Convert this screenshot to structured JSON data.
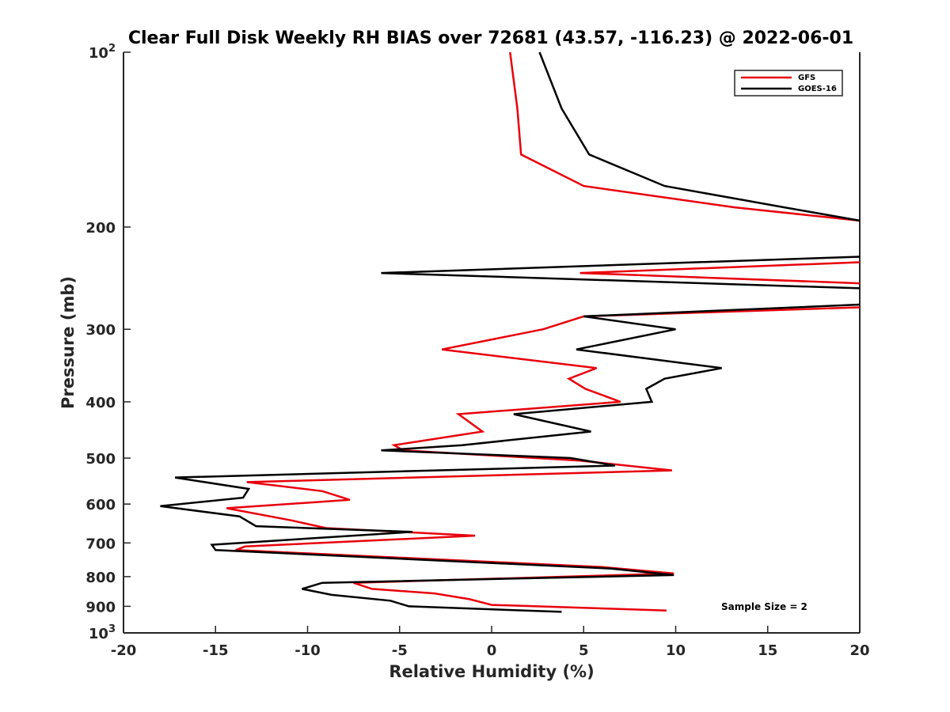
{
  "chart_data": {
    "type": "line",
    "title": "Clear Full Disk Weekly RH BIAS over 72681 (43.57, -116.23) @ 2022-06-01",
    "xlabel": "Relative Humidity (%)",
    "ylabel": "Pressure (mb)",
    "xlim": [
      -20,
      20
    ],
    "ylim": [
      100,
      1000
    ],
    "yscale": "log",
    "y_reversed": true,
    "x_ticks": [
      "-20",
      "-15",
      "-10",
      "-5",
      "0",
      "5",
      "10",
      "15",
      "20"
    ],
    "y_ticks": [
      {
        "value": 100,
        "label": "10",
        "sup": "2"
      },
      {
        "value": 200,
        "label": "200",
        "sup": ""
      },
      {
        "value": 300,
        "label": "300",
        "sup": ""
      },
      {
        "value": 400,
        "label": "400",
        "sup": ""
      },
      {
        "value": 500,
        "label": "500",
        "sup": ""
      },
      {
        "value": 600,
        "label": "600",
        "sup": ""
      },
      {
        "value": 700,
        "label": "700",
        "sup": ""
      },
      {
        "value": 800,
        "label": "800",
        "sup": ""
      },
      {
        "value": 900,
        "label": "900",
        "sup": ""
      },
      {
        "value": 1000,
        "label": "10",
        "sup": "3"
      }
    ],
    "legend_position": "top-right",
    "annotation": "Sample Size = 2",
    "series": [
      {
        "name": "GFS",
        "color": "#e8000b",
        "points": [
          [
            1.0,
            100
          ],
          [
            1.4,
            125
          ],
          [
            1.6,
            150
          ],
          [
            5.0,
            170
          ],
          [
            13.2,
            185
          ],
          [
            20.0,
            195
          ],
          [
            null,
            220
          ],
          [
            20.0,
            230
          ],
          [
            4.8,
            240
          ],
          [
            20.0,
            250
          ],
          [
            null,
            265
          ],
          [
            20.0,
            275
          ],
          [
            5.0,
            285
          ],
          [
            2.8,
            300
          ],
          [
            -2.7,
            325
          ],
          [
            5.7,
            350
          ],
          [
            4.2,
            365
          ],
          [
            5.1,
            380
          ],
          [
            7.0,
            400
          ],
          [
            -1.8,
            420
          ],
          [
            -0.5,
            450
          ],
          [
            -5.3,
            475
          ],
          [
            -4.8,
            485
          ],
          [
            4.8,
            505
          ],
          [
            9.8,
            525
          ],
          [
            -13.3,
            550
          ],
          [
            -9.2,
            570
          ],
          [
            -7.7,
            590
          ],
          [
            -14.4,
            610
          ],
          [
            -10.9,
            640
          ],
          [
            -9.0,
            660
          ],
          [
            -0.9,
            680
          ],
          [
            -13.4,
            710
          ],
          [
            -13.9,
            720
          ],
          [
            6.0,
            770
          ],
          [
            9.9,
            790
          ],
          [
            -7.5,
            820
          ],
          [
            -6.5,
            840
          ],
          [
            -3.1,
            855
          ],
          [
            -1.2,
            875
          ],
          [
            0.0,
            895
          ],
          [
            9.5,
            915
          ]
        ]
      },
      {
        "name": "GOES-16",
        "color": "#000000",
        "points": [
          [
            2.6,
            100
          ],
          [
            3.8,
            125
          ],
          [
            5.3,
            150
          ],
          [
            9.4,
            170
          ],
          [
            15.9,
            185
          ],
          [
            20.0,
            195
          ],
          [
            null,
            220
          ],
          [
            20.0,
            225
          ],
          [
            -6.0,
            240
          ],
          [
            20.0,
            255
          ],
          [
            null,
            265
          ],
          [
            20.0,
            272
          ],
          [
            5.0,
            285
          ],
          [
            10.0,
            300
          ],
          [
            4.6,
            325
          ],
          [
            12.5,
            350
          ],
          [
            9.4,
            365
          ],
          [
            8.4,
            380
          ],
          [
            8.7,
            400
          ],
          [
            1.2,
            420
          ],
          [
            5.4,
            450
          ],
          [
            -1.6,
            475
          ],
          [
            -6.0,
            485
          ],
          [
            4.3,
            500
          ],
          [
            6.7,
            515
          ],
          [
            -17.2,
            540
          ],
          [
            -13.2,
            565
          ],
          [
            -13.5,
            585
          ],
          [
            -18.0,
            605
          ],
          [
            -13.7,
            630
          ],
          [
            -12.8,
            655
          ],
          [
            -4.3,
            670
          ],
          [
            -15.2,
            705
          ],
          [
            -15.0,
            720
          ],
          [
            6.5,
            775
          ],
          [
            9.9,
            795
          ],
          [
            -9.2,
            820
          ],
          [
            -10.3,
            840
          ],
          [
            -8.7,
            860
          ],
          [
            -5.5,
            880
          ],
          [
            -4.5,
            900
          ],
          [
            3.8,
            920
          ]
        ]
      }
    ]
  }
}
